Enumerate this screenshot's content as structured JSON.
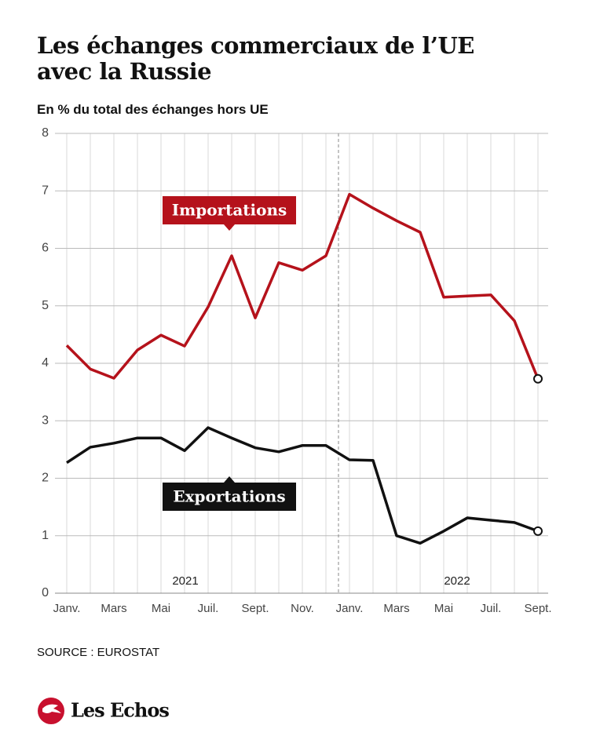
{
  "chart_data": {
    "type": "line",
    "title": "Les échanges commerciaux de l’UE avec la Russie",
    "subtitle": "En % du total des échanges hors UE",
    "categories": [
      "Janv.",
      null,
      "Mars",
      null,
      "Mai",
      null,
      "Juil.",
      null,
      "Sept.",
      null,
      "Nov.",
      null,
      "Janv.",
      null,
      "Mars",
      null,
      "Mai",
      null,
      "Juil.",
      null,
      "Sept."
    ],
    "series": [
      {
        "name": "Importations",
        "color": "#b5121b",
        "values": [
          4.31,
          3.9,
          3.74,
          4.23,
          4.49,
          4.3,
          4.98,
          5.87,
          4.79,
          5.75,
          5.62,
          5.87,
          6.94,
          6.7,
          6.48,
          6.28,
          5.15,
          5.17,
          5.19,
          4.74,
          3.73
        ]
      },
      {
        "name": "Exportations",
        "color": "#111111",
        "values": [
          2.27,
          2.54,
          2.61,
          2.7,
          2.7,
          2.48,
          2.88,
          2.7,
          2.53,
          2.46,
          2.57,
          2.57,
          2.32,
          2.31,
          1.0,
          0.87,
          1.08,
          1.31,
          1.27,
          1.23,
          1.08
        ]
      }
    ],
    "ylim": [
      0,
      8
    ],
    "yticks": [
      0,
      1,
      2,
      3,
      4,
      5,
      6,
      7,
      8
    ],
    "grid": true,
    "annotations": [
      "2021",
      "2022"
    ],
    "source": "SOURCE : EUROSTAT",
    "brand": "Les Echos"
  }
}
